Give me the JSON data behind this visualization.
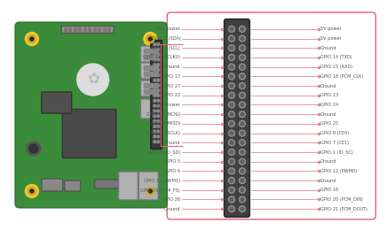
{
  "bg_color": "#ffffff",
  "border_color": "#e0607a",
  "board_green": "#3a8c3a",
  "board_green_dark": "#2e7a2e",
  "board_edge": "#2a6a2a",
  "pin_block_color": "#404040",
  "pin_block_edge": "#222222",
  "pin_outer_color": "#888888",
  "pin_inner_color": "#555555",
  "line_color": "#e08898",
  "dot_color": "#e08898",
  "text_color": "#555555",
  "connect_line_color": "#e0607a",
  "left_labels": [
    "3V3 power",
    "GPIO 2 (SDA)",
    "GPIO 3 (SCL)",
    "GPIO 4 (GPCLK0)",
    "Ground",
    "GPIO 17",
    "GPIO 27",
    "GPIO 22",
    "3V3 power",
    "GPIO 10 (MOSI)",
    "GPIO 9 (MISO)",
    "GPIO 11 (SCLK)",
    "Ground",
    "GPIO 0 (ID_SD)",
    "GPIO 5",
    "GPIO 6",
    "GPIO 13 (PWM1)",
    "GPIO 19 (PCM_FS)",
    "GPIO 26",
    "Ground"
  ],
  "right_labels": [
    "5V power",
    "5V power",
    "Ground",
    "GPIO 14 (TXD)",
    "GPIO 15 (RXD)",
    "GPIO 18 (PCM_CLK)",
    "Ground",
    "GPIO 23",
    "GPIO 24",
    "Ground",
    "GPIO 25",
    "GPIO 8 (CE0)",
    "GPIO 7 (CE1)",
    "GPIO 1 (ID_SC)",
    "Ground",
    "GPIO 12 (PWM0)",
    "Ground",
    "GPIO 16",
    "GPIO 20 (PCM_DIN)",
    "GPIO 21 (PCM_DOUT)"
  ]
}
